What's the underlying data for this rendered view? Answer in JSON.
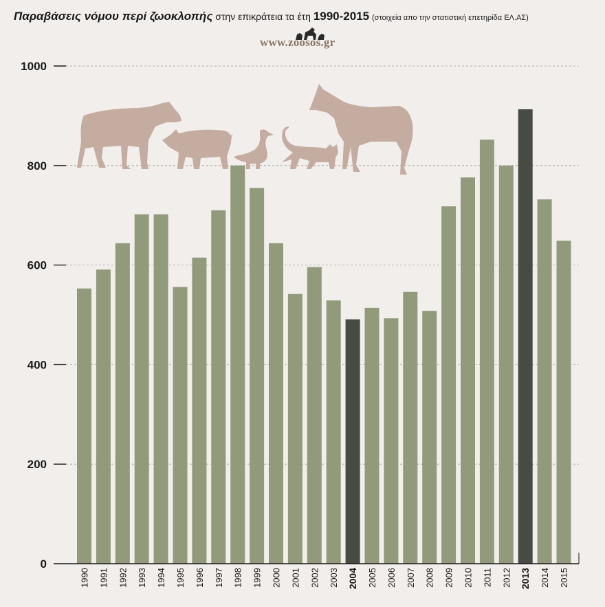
{
  "title": {
    "bold": "Παραβάσεις νόμου περί ζωοκλοπής",
    "regular": "στην επικράτεια τα έτη",
    "years": "1990-2015",
    "note": "(στοιχεία απο την στατιστική επετηρίδα ΕΛ.ΑΣ)"
  },
  "logo": {
    "text": "www.zoosos.gr"
  },
  "colors": {
    "bar": "#929a7c",
    "highlight": "#464b44",
    "animals": "#c4ada0",
    "grid": "#9c9c9c"
  },
  "chart_data": {
    "type": "bar",
    "title": "Παραβάσεις νόμου περί ζωοκλοπής στην επικράτεια τα έτη 1990-2015",
    "xlabel": "",
    "ylabel": "",
    "ylim": [
      0,
      1000
    ],
    "yticks": [
      "0",
      "200",
      "400",
      "600",
      "800",
      "1000"
    ],
    "grid": true,
    "categories": [
      "1990",
      "1991",
      "1992",
      "1993",
      "1994",
      "1995",
      "1996",
      "1997",
      "1998",
      "1999",
      "2000",
      "2001",
      "2002",
      "2003",
      "2004",
      "2005",
      "2006",
      "2007",
      "2008",
      "2009",
      "2010",
      "2011",
      "2012",
      "2013",
      "2014",
      "2015"
    ],
    "values": [
      553,
      591,
      644,
      702,
      702,
      556,
      615,
      710,
      800,
      755,
      644,
      542,
      596,
      529,
      491,
      514,
      493,
      546,
      508,
      718,
      776,
      852,
      800,
      913,
      732,
      649
    ],
    "highlighted": [
      "2004",
      "2013"
    ]
  }
}
